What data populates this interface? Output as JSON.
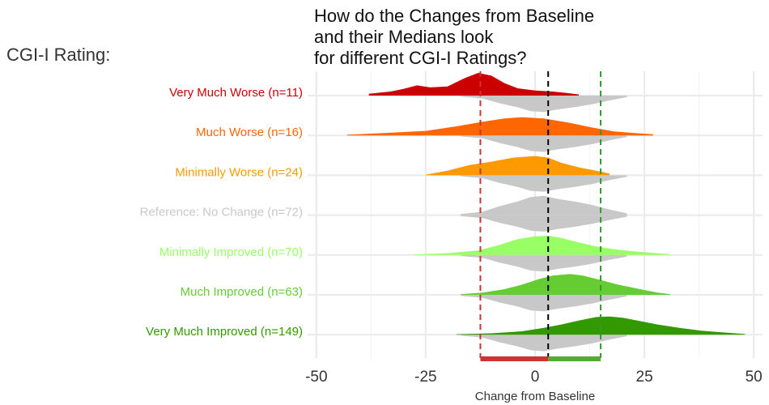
{
  "chart_data": {
    "type": "ridgeline",
    "title_lines": [
      "How do the Changes from Baseline",
      "and their Medians look",
      "for different CGI-I Ratings?"
    ],
    "y_heading": "CGI-I Rating:",
    "xlabel": "Change from Baseline",
    "xlim": [
      -52,
      52
    ],
    "x_ticks": [
      -50,
      -25,
      0,
      25,
      50
    ],
    "x_tick_labels": [
      "-50",
      "-25",
      "0",
      "25",
      "50"
    ],
    "grid": true,
    "reference_color": "#c8c8c8",
    "categories": [
      {
        "label": "Very Much Worse (n=11)",
        "color": "#cc0000",
        "points": [
          [
            -38,
            0.08
          ],
          [
            -33,
            0.18
          ],
          [
            -30,
            0.3
          ],
          [
            -27,
            0.45
          ],
          [
            -24,
            0.36
          ],
          [
            -20,
            0.4
          ],
          [
            -16,
            0.78
          ],
          [
            -13,
            1.0
          ],
          [
            -10,
            0.88
          ],
          [
            -7,
            0.55
          ],
          [
            -4,
            0.32
          ],
          [
            0,
            0.22
          ],
          [
            4,
            0.18
          ],
          [
            7,
            0.12
          ],
          [
            10,
            0.05
          ]
        ]
      },
      {
        "label": "Much Worse  (n=16)",
        "color": "#ff6600",
        "points": [
          [
            -43,
            0.03
          ],
          [
            -35,
            0.1
          ],
          [
            -25,
            0.2
          ],
          [
            -18,
            0.4
          ],
          [
            -12,
            0.6
          ],
          [
            -7,
            0.75
          ],
          [
            -3,
            0.8
          ],
          [
            2,
            0.75
          ],
          [
            8,
            0.55
          ],
          [
            13,
            0.35
          ],
          [
            18,
            0.18
          ],
          [
            23,
            0.1
          ],
          [
            27,
            0.05
          ]
        ]
      },
      {
        "label": "Minimally Worse  (n=24)",
        "color": "#ff9900",
        "points": [
          [
            -25,
            0.03
          ],
          [
            -20,
            0.2
          ],
          [
            -15,
            0.45
          ],
          [
            -10,
            0.6
          ],
          [
            -5,
            0.78
          ],
          [
            0,
            0.85
          ],
          [
            3,
            0.78
          ],
          [
            6,
            0.55
          ],
          [
            10,
            0.35
          ],
          [
            14,
            0.2
          ],
          [
            17,
            0.08
          ]
        ]
      },
      {
        "label": "Reference: No Change  (n=72)",
        "color": "#c8c8c8",
        "points": [
          [
            -17,
            0.05
          ],
          [
            -12,
            0.15
          ],
          [
            -8,
            0.4
          ],
          [
            -4,
            0.6
          ],
          [
            -1,
            0.8
          ],
          [
            2,
            0.85
          ],
          [
            5,
            0.72
          ],
          [
            9,
            0.6
          ],
          [
            13,
            0.45
          ],
          [
            17,
            0.25
          ],
          [
            21,
            0.08
          ]
        ]
      },
      {
        "label": "Minimally Improved  (n=70)",
        "color": "#99ff66",
        "points": [
          [
            -28,
            0.02
          ],
          [
            -20,
            0.08
          ],
          [
            -13,
            0.2
          ],
          [
            -8,
            0.45
          ],
          [
            -4,
            0.7
          ],
          [
            0,
            0.82
          ],
          [
            3,
            0.85
          ],
          [
            6,
            0.75
          ],
          [
            10,
            0.55
          ],
          [
            14,
            0.38
          ],
          [
            18,
            0.25
          ],
          [
            23,
            0.15
          ],
          [
            28,
            0.08
          ],
          [
            31,
            0.03
          ]
        ]
      },
      {
        "label": "Much Improved  (n=63)",
        "color": "#66cc33",
        "points": [
          [
            -17,
            0.03
          ],
          [
            -12,
            0.1
          ],
          [
            -7,
            0.25
          ],
          [
            -3,
            0.45
          ],
          [
            1,
            0.7
          ],
          [
            4,
            0.85
          ],
          [
            8,
            0.92
          ],
          [
            11,
            0.85
          ],
          [
            15,
            0.65
          ],
          [
            19,
            0.45
          ],
          [
            24,
            0.25
          ],
          [
            28,
            0.1
          ],
          [
            31,
            0.03
          ]
        ]
      },
      {
        "label": "Very Much Improved  (n=149)",
        "color": "#339900",
        "points": [
          [
            -18,
            0.02
          ],
          [
            -10,
            0.06
          ],
          [
            -3,
            0.15
          ],
          [
            2,
            0.3
          ],
          [
            6,
            0.45
          ],
          [
            10,
            0.62
          ],
          [
            14,
            0.78
          ],
          [
            17,
            0.8
          ],
          [
            20,
            0.75
          ],
          [
            24,
            0.6
          ],
          [
            28,
            0.45
          ],
          [
            33,
            0.3
          ],
          [
            38,
            0.18
          ],
          [
            43,
            0.1
          ],
          [
            48,
            0.03
          ]
        ]
      }
    ],
    "reference_median": 3,
    "vlines": [
      {
        "x": -12.5,
        "color": "#cc3333"
      },
      {
        "x": 3,
        "color": "#000000"
      },
      {
        "x": 15,
        "color": "#339933"
      }
    ],
    "bottom_bars": [
      {
        "from": -12.5,
        "to": 3,
        "color": "#cc3333"
      },
      {
        "from": 3,
        "to": 15,
        "color": "#55aa33"
      }
    ]
  }
}
